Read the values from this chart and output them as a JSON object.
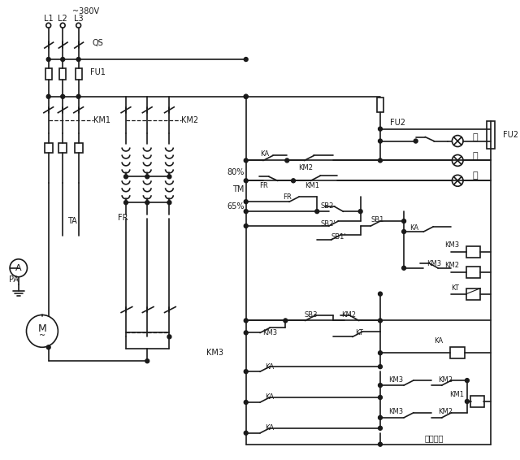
{
  "bg_color": "#ffffff",
  "line_color": "#1a1a1a",
  "lw": 1.2,
  "fig_w": 6.4,
  "fig_h": 5.66,
  "dpi": 100,
  "voltage_label": "~380V",
  "phase_labels": [
    "L1",
    "L2",
    "L3"
  ],
  "green_label": "绿",
  "yellow_label": "黄",
  "red_label": "红",
  "watermark": "按成培训"
}
